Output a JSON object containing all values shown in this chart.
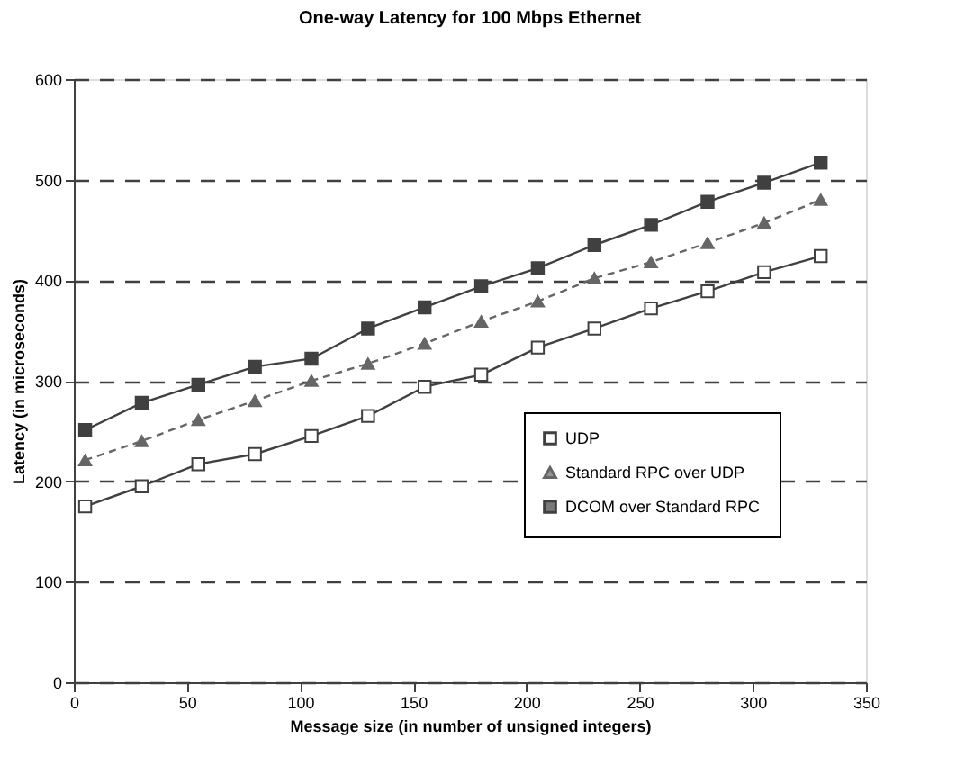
{
  "chart_data": {
    "type": "line",
    "title": "One-way Latency for 100 Mbps Ethernet",
    "xlabel": "Message size (in number of unsigned integers)",
    "ylabel": "Latency (in microseconds)",
    "x": [
      5,
      30,
      55,
      80,
      105,
      130,
      155,
      180,
      205,
      230,
      255,
      280,
      305,
      330
    ],
    "series": [
      {
        "name": "UDP",
        "color": "#404040",
        "marker": "square",
        "line_style": "solid",
        "values": [
          175,
          195,
          217,
          227,
          245,
          265,
          294,
          306,
          333,
          352,
          372,
          389,
          408,
          424
        ]
      },
      {
        "name": "Standard RPC over UDP",
        "color": "#666666",
        "marker": "triangle",
        "line_style": "dashed",
        "values": [
          221,
          240,
          261,
          280,
          300,
          317,
          337,
          359,
          379,
          402,
          418,
          437,
          457,
          480
        ]
      },
      {
        "name": "DCOM over Standard RPC",
        "color": "#404040",
        "marker": "square",
        "line_style": "solid",
        "values": [
          251,
          278,
          296,
          314,
          322,
          352,
          373,
          394,
          412,
          435,
          455,
          478,
          497,
          517
        ]
      }
    ],
    "xlim": [
      0,
      350
    ],
    "xticks": [
      0,
      50,
      100,
      150,
      200,
      250,
      300,
      350
    ],
    "ylim": [
      0,
      600
    ],
    "yticks": [
      0,
      100,
      200,
      300,
      400,
      500,
      600
    ],
    "grid": "y",
    "legend": "right"
  }
}
